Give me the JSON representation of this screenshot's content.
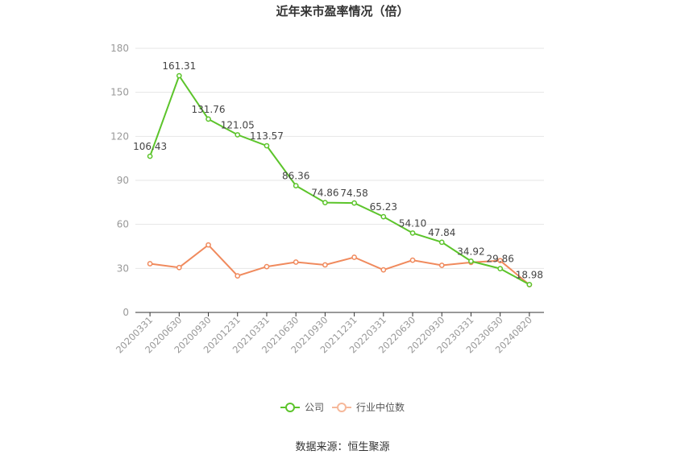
{
  "title": "近年来市盈率情况（倍）",
  "source": "数据来源：恒生聚源",
  "colors": {
    "company": "#5cc42b",
    "industry": "#f08a5d",
    "axis": "#333333",
    "grid": "#e6e6e6",
    "tick": "#999999"
  },
  "chart_data": {
    "type": "line",
    "title": "近年来市盈率情况（倍）",
    "categories": [
      "20200331",
      "20200630",
      "20200930",
      "20201231",
      "20210331",
      "20210630",
      "20210930",
      "20211231",
      "20220331",
      "20220630",
      "20220930",
      "20230331",
      "20230630",
      "20240820"
    ],
    "ylim": [
      0,
      180
    ],
    "yticks": [
      0,
      30,
      60,
      90,
      120,
      150,
      180
    ],
    "grid": true,
    "legend_position": "bottom-center",
    "series": [
      {
        "name": "公司",
        "color": "#5cc42b",
        "values": [
          106.43,
          161.31,
          131.76,
          121.05,
          113.57,
          86.36,
          74.86,
          74.58,
          65.23,
          54.1,
          47.84,
          34.92,
          29.86,
          18.98
        ],
        "labels": [
          "106.43",
          "161.31",
          "131.76",
          "121.05",
          "113.57",
          "86.36",
          "74.86",
          "74.58",
          "65.23",
          "54.10",
          "47.84",
          "34.92",
          "29.86",
          "18.98"
        ]
      },
      {
        "name": "行业中位数",
        "color": "#f08a5d",
        "values": [
          33.2,
          30.6,
          46.0,
          24.9,
          31.2,
          34.3,
          32.4,
          37.6,
          29.0,
          35.6,
          32.1,
          34.1,
          35.3,
          18.9
        ]
      }
    ]
  }
}
